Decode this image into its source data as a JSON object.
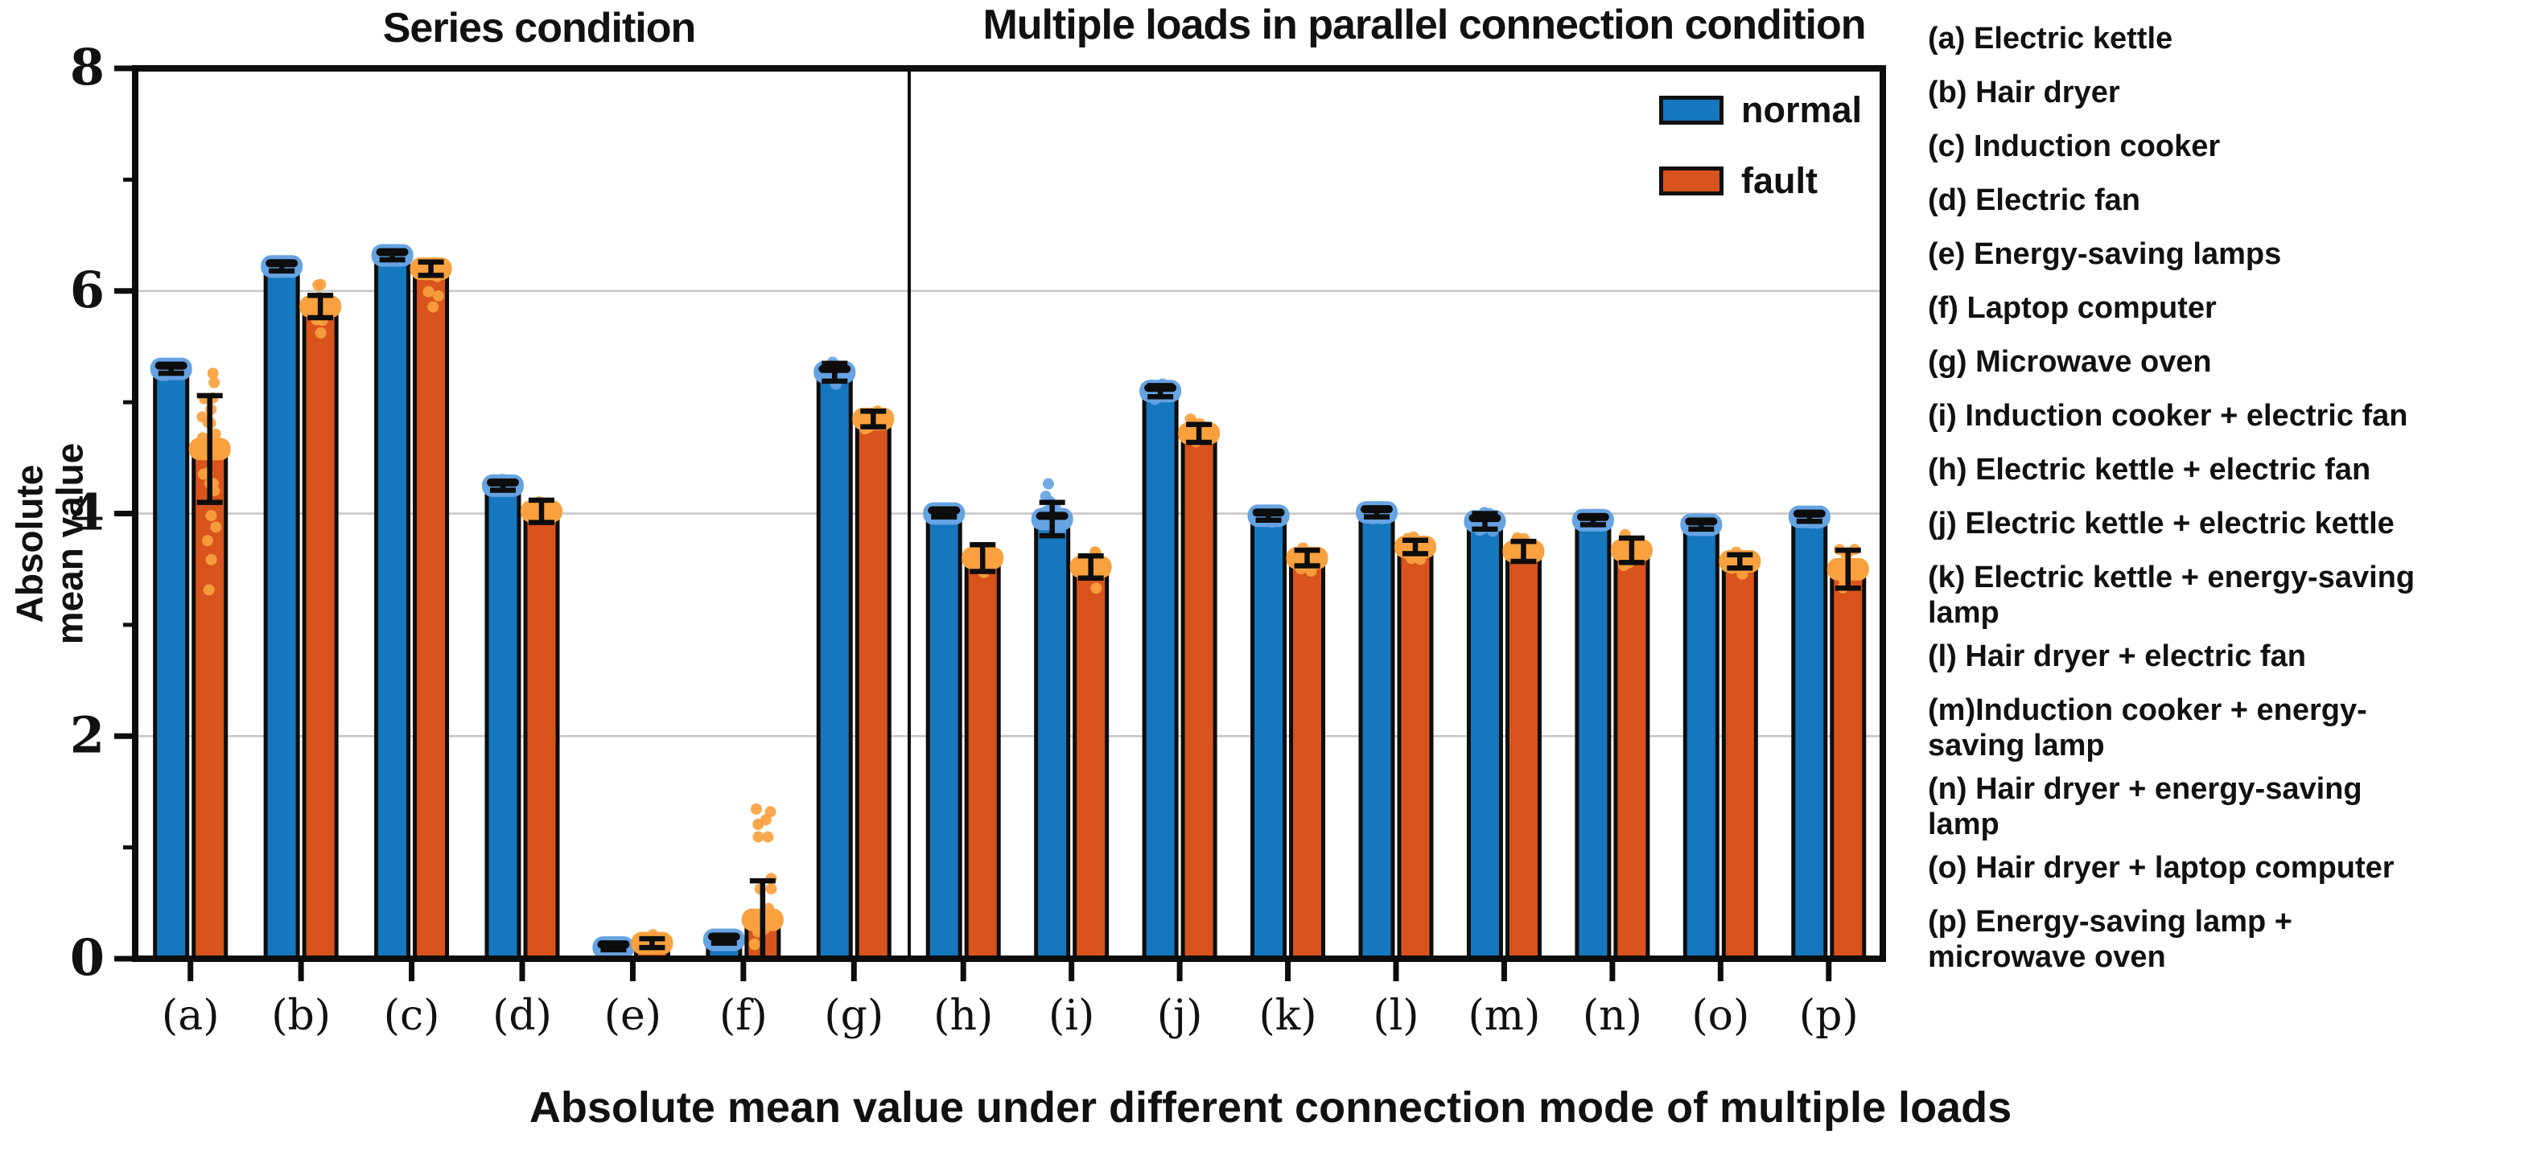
{
  "figure": {
    "panel_titles": {
      "left": "Series condition",
      "right": "Multiple loads in parallel connection condition"
    },
    "caption": "Absolute mean value under different connection mode of multiple loads"
  },
  "colors": {
    "normal_bar": "#1577be",
    "normal_scatter": "#66a3e2",
    "fault_bar": "#d8541c",
    "fault_scatter": "#f8a13e",
    "bar_outline": "#0d0d0d",
    "gridline": "#c6c6c6",
    "frame": "#0d0d0d",
    "text": "#111111"
  },
  "chart_data": {
    "type": "bar",
    "title_left": "Series condition",
    "title_right": "Multiple loads in parallel connection condition",
    "ylabel": "Absolute mean value",
    "ylabel_lines": [
      "Absolute",
      "mean value"
    ],
    "ylim": [
      0,
      8
    ],
    "yticks": [
      0,
      2,
      4,
      6,
      8
    ],
    "yticks_minor": [
      1,
      3,
      5,
      7
    ],
    "gridlines": [
      2,
      4,
      6
    ],
    "grid": true,
    "legend_position": "upper right inside plot",
    "panel_split_after_index": 6,
    "categories": [
      "(a)",
      "(b)",
      "(c)",
      "(d)",
      "(e)",
      "(f)",
      "(g)",
      "(h)",
      "(i)",
      "(j)",
      "(k)",
      "(l)",
      "(m)",
      "(n)",
      "(o)",
      "(p)"
    ],
    "series": [
      {
        "name": "normal",
        "values": [
          5.3,
          6.22,
          6.32,
          4.25,
          0.1,
          0.17,
          5.27,
          4.0,
          3.95,
          5.1,
          3.98,
          4.01,
          3.93,
          3.94,
          3.9,
          3.97
        ],
        "errors": [
          0.04,
          0.04,
          0.04,
          0.04,
          0.02,
          0.03,
          0.08,
          0.03,
          0.15,
          0.05,
          0.04,
          0.04,
          0.07,
          0.04,
          0.04,
          0.04
        ],
        "scatter_ranges": [
          [
            5.24,
            5.36
          ],
          [
            6.16,
            6.28
          ],
          [
            6.26,
            6.38
          ],
          [
            4.19,
            4.31
          ],
          [
            0.06,
            0.14
          ],
          [
            0.12,
            0.22
          ],
          [
            5.14,
            5.36
          ],
          [
            3.95,
            4.05
          ],
          [
            3.78,
            4.32
          ],
          [
            5.02,
            5.18
          ],
          [
            3.92,
            4.04
          ],
          [
            3.95,
            4.07
          ],
          [
            3.84,
            4.02
          ],
          [
            3.87,
            4.0
          ],
          [
            3.84,
            3.96
          ],
          [
            3.9,
            4.04
          ]
        ]
      },
      {
        "name": "fault",
        "values": [
          4.58,
          5.86,
          6.2,
          4.02,
          0.14,
          0.35,
          4.85,
          3.6,
          3.52,
          4.72,
          3.6,
          3.7,
          3.66,
          3.67,
          3.57,
          3.5
        ],
        "errors": [
          0.48,
          0.1,
          0.06,
          0.1,
          0.04,
          0.35,
          0.07,
          0.12,
          0.1,
          0.08,
          0.07,
          0.06,
          0.09,
          0.11,
          0.06,
          0.17
        ],
        "scatter_ranges": [
          [
            3.3,
            5.3
          ],
          [
            5.6,
            6.1
          ],
          [
            5.78,
            6.28
          ],
          [
            3.88,
            4.16
          ],
          [
            0.08,
            0.22
          ],
          [
            0.1,
            1.35
          ],
          [
            4.74,
            4.96
          ],
          [
            3.38,
            3.76
          ],
          [
            3.3,
            3.66
          ],
          [
            4.62,
            4.85
          ],
          [
            3.48,
            3.74
          ],
          [
            3.58,
            3.82
          ],
          [
            3.52,
            3.82
          ],
          [
            3.48,
            3.82
          ],
          [
            3.44,
            3.68
          ],
          [
            3.28,
            3.72
          ]
        ]
      }
    ]
  },
  "device_legend": {
    "items": [
      {
        "lines": [
          "(a) Electric kettle"
        ]
      },
      {
        "lines": [
          "(b) Hair dryer"
        ]
      },
      {
        "lines": [
          "(c) Induction cooker"
        ]
      },
      {
        "lines": [
          "(d) Electric fan"
        ]
      },
      {
        "lines": [
          "(e) Energy-saving lamps"
        ]
      },
      {
        "lines": [
          "(f) Laptop computer"
        ]
      },
      {
        "lines": [
          "(g) Microwave oven"
        ]
      },
      {
        "lines": [
          "(i) Induction cooker + electric fan"
        ]
      },
      {
        "lines": [
          "(h) Electric kettle + electric fan"
        ]
      },
      {
        "lines": [
          "(j) Electric kettle + electric kettle"
        ]
      },
      {
        "lines": [
          "(k) Electric kettle + energy-saving",
          "lamp"
        ]
      },
      {
        "lines": [
          "(l) Hair dryer + electric fan"
        ]
      },
      {
        "lines": [
          "(m)Induction cooker + energy-",
          "saving lamp"
        ]
      },
      {
        "lines": [
          "(n) Hair dryer + energy-saving",
          "lamp"
        ]
      },
      {
        "lines": [
          "(o) Hair dryer + laptop computer"
        ]
      },
      {
        "lines": [
          "(p) Energy-saving lamp +",
          "microwave oven"
        ]
      }
    ]
  }
}
